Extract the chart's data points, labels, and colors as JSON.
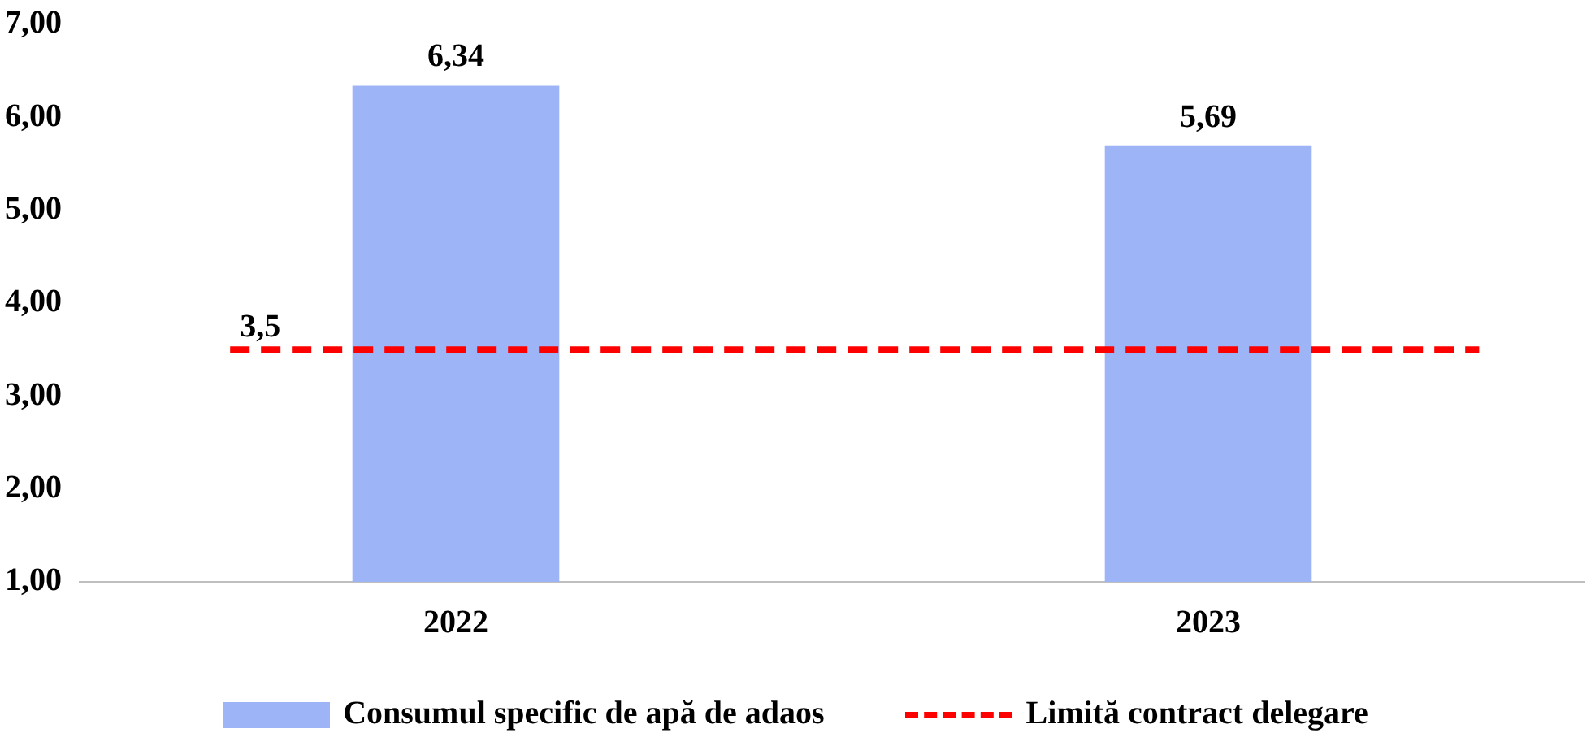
{
  "chart_data": {
    "type": "bar",
    "categories": [
      "2022",
      "2023"
    ],
    "series": [
      {
        "name": "Consumul specific de apă de adaos",
        "color": "#9db4f7",
        "values": [
          6.34,
          5.69
        ],
        "value_labels": [
          "6,34",
          "5,69"
        ]
      }
    ],
    "ylim": [
      1,
      7
    ],
    "yticks": [
      {
        "value": 1,
        "label": "1,00"
      },
      {
        "value": 2,
        "label": "2,00"
      },
      {
        "value": 3,
        "label": "3,00"
      },
      {
        "value": 4,
        "label": "4,00"
      },
      {
        "value": 5,
        "label": "5,00"
      },
      {
        "value": 6,
        "label": "6,00"
      },
      {
        "value": 7,
        "label": "7,00"
      }
    ],
    "ref_lines": [
      {
        "axis": "y",
        "value": 3.5,
        "label": "Limită contract delegare",
        "color": "#ff0000",
        "line_style": "dashed"
      }
    ],
    "annotations": [
      {
        "text": "3,5",
        "y": 3.5
      }
    ],
    "grid": false,
    "legend": "bottom"
  }
}
